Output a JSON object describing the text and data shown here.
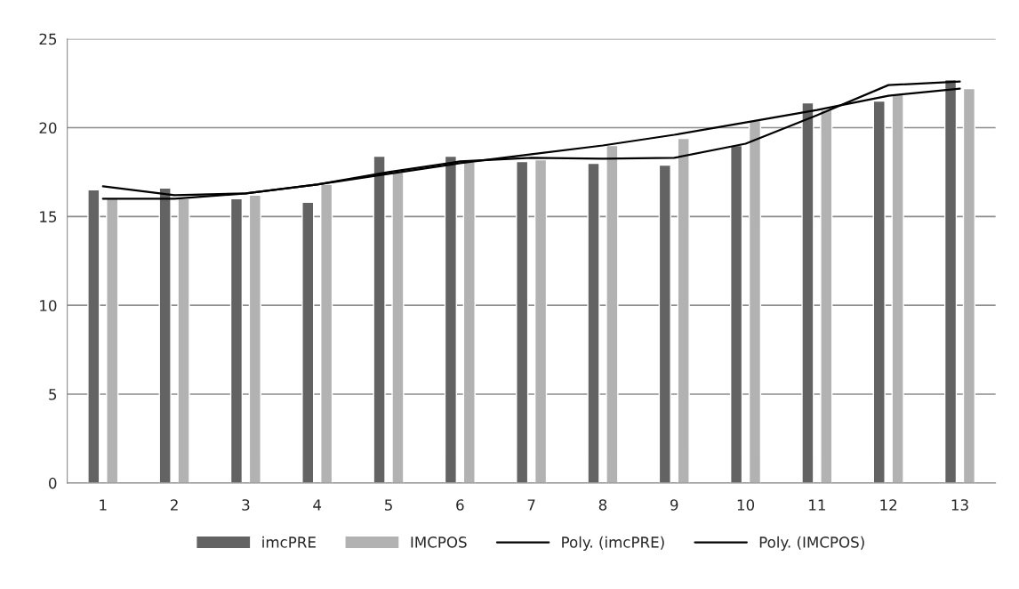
{
  "chart_data": {
    "type": "bar",
    "categories": [
      "1",
      "2",
      "3",
      "4",
      "5",
      "6",
      "7",
      "8",
      "9",
      "10",
      "11",
      "12",
      "13"
    ],
    "series": [
      {
        "name": "imcPRE",
        "color": "#636363",
        "values": [
          16.5,
          16.6,
          16.0,
          15.8,
          18.4,
          18.4,
          18.1,
          18.0,
          17.9,
          19.0,
          21.4,
          21.5,
          22.7
        ]
      },
      {
        "name": "IMCPOS",
        "color": "#b2b2b2",
        "values": [
          16.0,
          16.0,
          16.2,
          16.8,
          17.5,
          18.1,
          18.2,
          19.0,
          19.4,
          20.4,
          21.0,
          21.9,
          22.2
        ]
      },
      {
        "name": "Poly. (imcPRE)",
        "type": "line",
        "color": "#000000",
        "values": [
          16.0,
          16.0,
          16.3,
          16.8,
          17.5,
          18.1,
          18.3,
          18.25,
          18.3,
          19.1,
          20.7,
          22.4,
          22.6
        ]
      },
      {
        "name": "Poly. (IMCPOS)",
        "type": "line",
        "color": "#000000",
        "values": [
          16.7,
          16.2,
          16.3,
          16.8,
          17.4,
          18.0,
          18.5,
          19.0,
          19.6,
          20.3,
          21.0,
          21.8,
          22.2
        ]
      }
    ],
    "ylim": [
      0,
      25
    ],
    "yticks": [
      0,
      5,
      10,
      15,
      20,
      25
    ],
    "grid": "y",
    "legend": "bottom",
    "marker": "none",
    "line_style": "solid"
  }
}
